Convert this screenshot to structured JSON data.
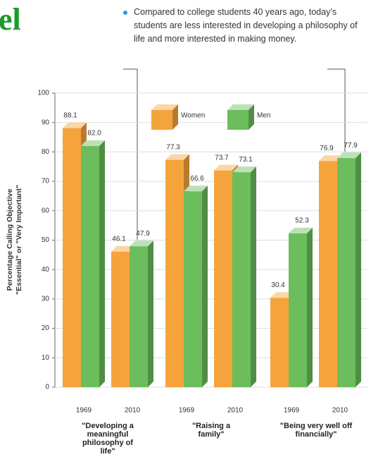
{
  "chart_data": {
    "type": "bar3d",
    "title": "el",
    "annotation": "Compared to college students 40 years ago, today’s students are less interested in developing a philosophy of life and more interested in making money.",
    "ylabel": [
      "Percentage Calling Objective",
      "\"Essential\" or \"Very Important\""
    ],
    "categories": [
      "1969",
      "2010",
      "1969",
      "2010",
      "1969",
      "2010"
    ],
    "groups": [
      "\"Developing a meaningful philosophy of life\"",
      "\"Raising a family\"",
      "\"Being very well off financially\""
    ],
    "series": [
      {
        "name": "Women",
        "color": "#f5a43c",
        "values": [
          88.1,
          46.1,
          77.3,
          73.7,
          30.4,
          76.9
        ]
      },
      {
        "name": "Men",
        "color": "#6cbd5c",
        "values": [
          82.0,
          47.9,
          66.6,
          73.1,
          52.3,
          77.9
        ],
        "value_labels": [
          "82.0",
          "47.9",
          "66.6",
          "73.1",
          "52.3",
          "77.9"
        ]
      }
    ],
    "ylim": [
      0,
      100
    ],
    "yticks": [
      0,
      10,
      20,
      30,
      40,
      50,
      60,
      70,
      80,
      90,
      100
    ],
    "grid": true
  }
}
